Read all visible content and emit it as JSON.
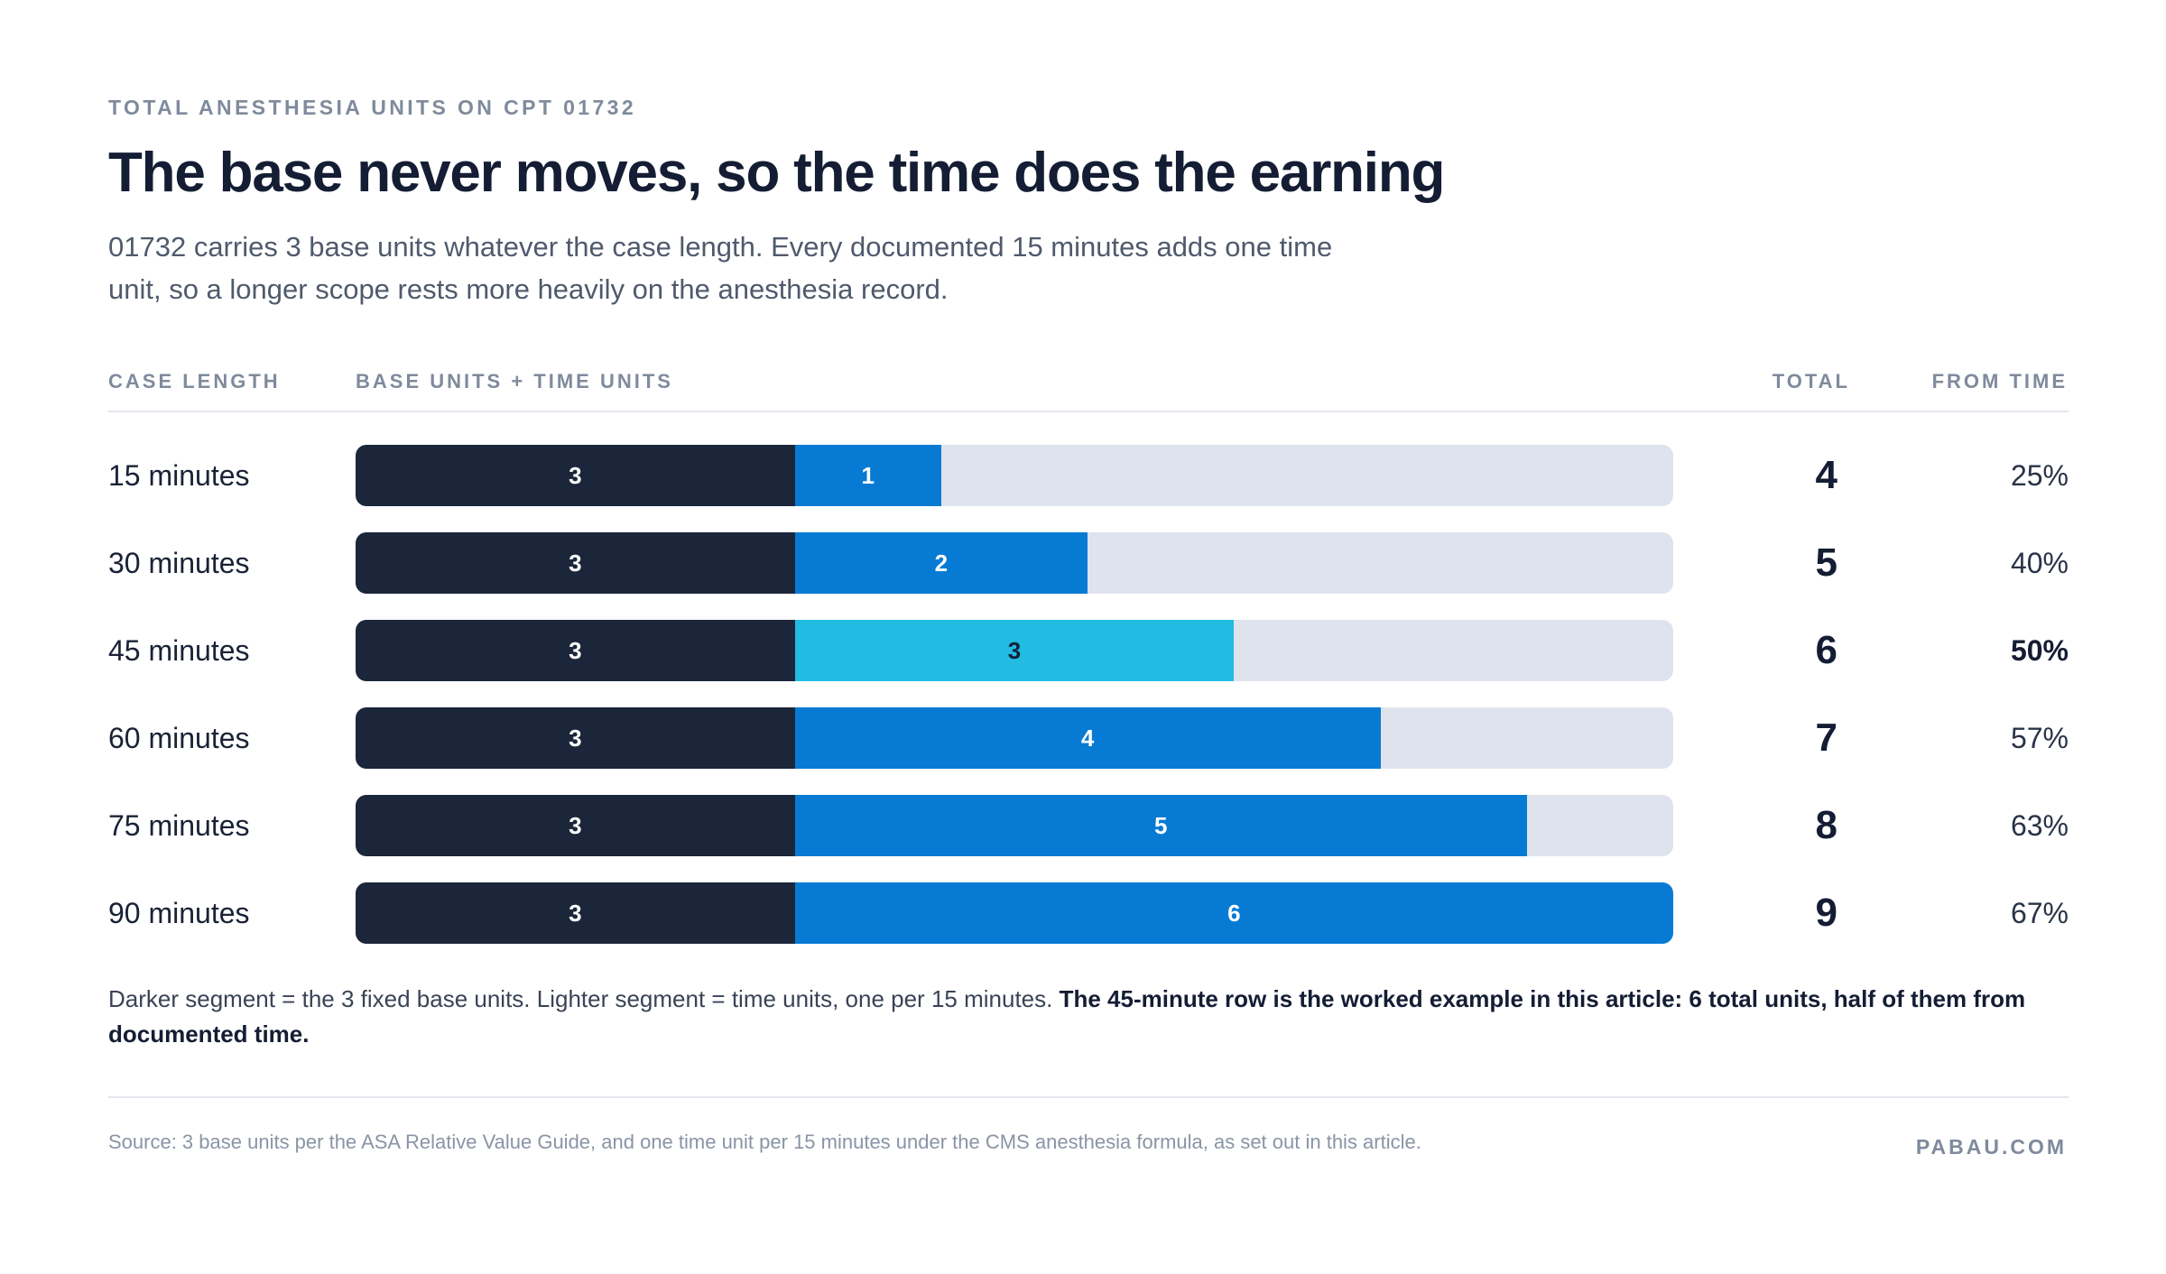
{
  "header": {
    "eyebrow": "TOTAL ANESTHESIA UNITS ON CPT 01732",
    "title": "The base never moves, so the time does the earning",
    "subtitle": "01732 carries 3 base units whatever the case length. Every documented 15 minutes adds one time unit, so a longer scope rests more heavily on the anesthesia record."
  },
  "columns": {
    "case_length": "CASE LENGTH",
    "bars": "BASE UNITS + TIME UNITS",
    "total": "TOTAL",
    "from_time": "FROM TIME"
  },
  "colors": {
    "base": "#1b263b",
    "time": "#077bd4",
    "time_highlight": "#22bbe2",
    "track": "#dfe3ed"
  },
  "chart_data": {
    "type": "bar",
    "orientation": "horizontal",
    "stacked": true,
    "xlim": [
      0,
      9
    ],
    "categories": [
      "15 minutes",
      "30 minutes",
      "45 minutes",
      "60 minutes",
      "75 minutes",
      "90 minutes"
    ],
    "series": [
      {
        "name": "base units",
        "values": [
          3,
          3,
          3,
          3,
          3,
          3
        ]
      },
      {
        "name": "time units",
        "values": [
          1,
          2,
          3,
          4,
          5,
          6
        ]
      }
    ],
    "totals": [
      "4",
      "5",
      "6",
      "7",
      "8",
      "9"
    ],
    "from_time": [
      "25%",
      "40%",
      "50%",
      "57%",
      "63%",
      "67%"
    ],
    "highlight_index": 2
  },
  "note": {
    "plain": "Darker segment = the 3 fixed base units. Lighter segment = time units, one per 15 minutes. ",
    "bold": "The 45-minute row is the worked example in this article: 6 total units, half of them from documented time."
  },
  "footer": {
    "source": "Source: 3 base units per the ASA Relative Value Guide, and one time unit per 15 minutes under the CMS anesthesia formula, as set out in this article.",
    "brand": "PABAU.COM"
  }
}
